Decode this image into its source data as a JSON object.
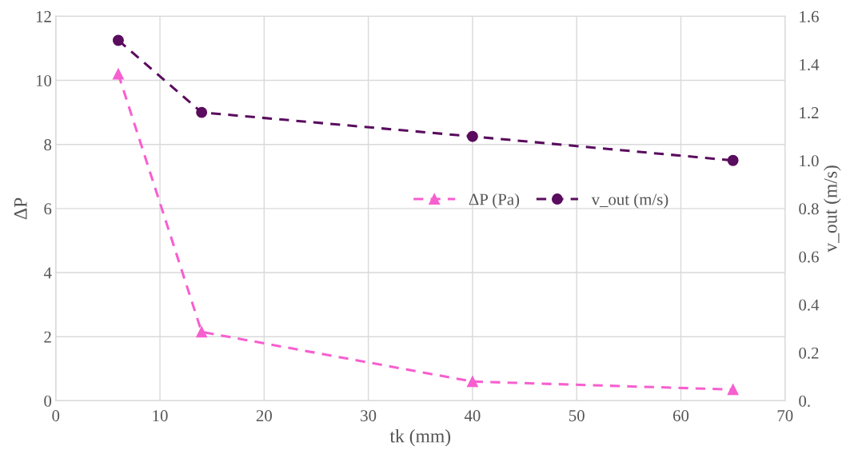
{
  "chart_data": {
    "type": "line",
    "xlabel": "tk (mm)",
    "ylabel": "ΔP",
    "y2label": "v_out (m/s)",
    "xlim": [
      0,
      70
    ],
    "xticks": [
      0,
      10,
      20,
      30,
      40,
      50,
      60,
      70
    ],
    "ylim": [
      0,
      12
    ],
    "yticks": [
      0,
      2,
      4,
      6,
      8,
      10,
      12
    ],
    "y2lim": [
      0,
      1.6
    ],
    "y2ticks": [
      {
        "value": 0,
        "label": "0."
      },
      {
        "value": 0.2,
        "label": "0.2"
      },
      {
        "value": 0.4,
        "label": "0.4"
      },
      {
        "value": 0.6,
        "label": "0.6"
      },
      {
        "value": 0.8,
        "label": "0.8"
      },
      {
        "value": 1.0,
        "label": "1.0"
      },
      {
        "value": 1.2,
        "label": "1.2"
      },
      {
        "value": 1.4,
        "label": "1.4"
      },
      {
        "value": 1.6,
        "label": "1.6"
      }
    ],
    "grid": true,
    "legend": "right",
    "line_style": "dashed",
    "series": [
      {
        "name": "ΔP (Pa)",
        "color": "#f75fcf",
        "marker": "triangle",
        "x": [
          6,
          14,
          40,
          65
        ],
        "values": [
          10.2,
          2.15,
          0.6,
          0.35
        ]
      },
      {
        "name": "v_out (m/s)",
        "color": "#5a0c5e",
        "marker": "circle",
        "axis": "y2",
        "x": [
          6,
          14,
          40,
          65
        ],
        "values": [
          1.5,
          1.2,
          1.1,
          1.0
        ]
      }
    ]
  }
}
